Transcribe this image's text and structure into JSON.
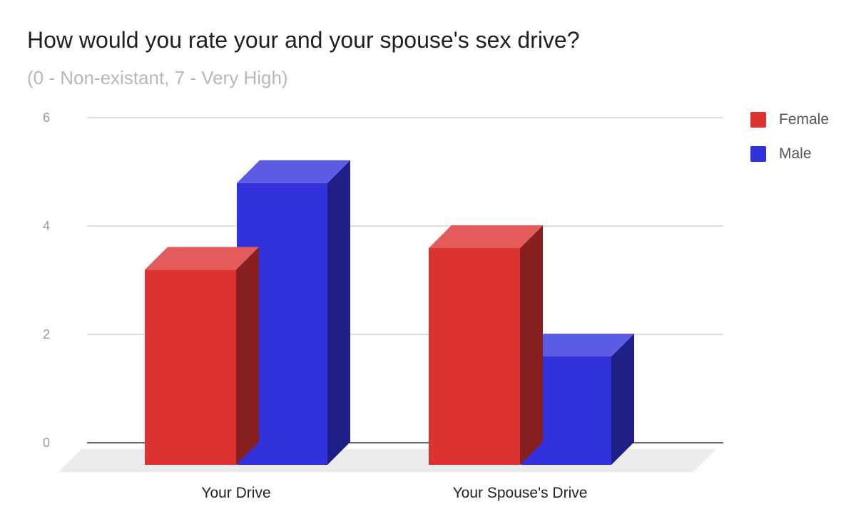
{
  "chart_data": {
    "type": "bar",
    "title": "How would you rate your and your spouse's sex drive?",
    "subtitle": "(0 - Non-existant, 7 - Very High)",
    "categories": [
      "Your Drive",
      "Your Spouse's Drive"
    ],
    "series": [
      {
        "name": "Female",
        "values": [
          3.6,
          4.0
        ],
        "color": "#dc3232"
      },
      {
        "name": "Male",
        "values": [
          5.2,
          2.0
        ],
        "color": "#3232dc"
      }
    ],
    "ylim": [
      0,
      6
    ],
    "yticks": [
      0,
      2,
      4,
      6
    ],
    "grid": true,
    "legend_position": "right",
    "style": "3d"
  }
}
